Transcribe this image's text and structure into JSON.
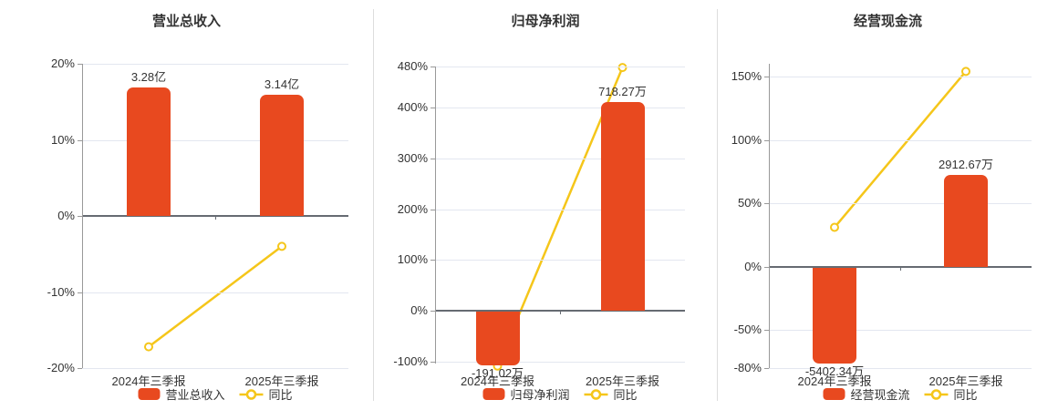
{
  "colors": {
    "bar": "#e8491f",
    "line": "#f5c61a",
    "grid": "#e3e7f0",
    "zero_axis": "#666b72",
    "axis_line": "#999999",
    "text": "#333333",
    "divider": "#dddddd",
    "marker_fill": "#ffffff",
    "background": "#ffffff"
  },
  "chart_data": [
    {
      "type": "bar+line",
      "title": "营业总收入",
      "categories": [
        "2024年三季报",
        "2025年三季报"
      ],
      "bar_series": {
        "name": "营业总收入",
        "value_labels": [
          "3.28亿",
          "3.14亿"
        ],
        "plot_values_pct": [
          16.9,
          15.9
        ]
      },
      "line_series": {
        "name": "同比",
        "values_pct": [
          -17.2,
          -4.0
        ]
      },
      "y_ticks_pct": [
        20,
        10,
        0,
        -10,
        -20
      ],
      "ylim": [
        -20,
        20
      ],
      "tick_suffix": "%",
      "grid": true,
      "legend": [
        "营业总收入",
        "同比"
      ],
      "legend_position": "bottom"
    },
    {
      "type": "bar+line",
      "title": "归母净利润",
      "categories": [
        "2024年三季报",
        "2025年三季报"
      ],
      "bar_series": {
        "name": "归母净利润",
        "value_labels": [
          "-191.02万",
          "718.27万"
        ],
        "plot_values_pct": [
          -104,
          410
        ]
      },
      "line_series": {
        "name": "同比",
        "values_pct": [
          -108,
          478
        ]
      },
      "y_ticks_pct": [
        480,
        400,
        300,
        200,
        100,
        0,
        -100
      ],
      "ylim": [
        -103,
        480
      ],
      "tick_suffix": "%",
      "grid": true,
      "legend": [
        "归母净利润",
        "同比"
      ],
      "legend_position": "bottom"
    },
    {
      "type": "bar+line",
      "title": "经营现金流",
      "categories": [
        "2024年三季报",
        "2025年三季报"
      ],
      "bar_series": {
        "name": "经营现金流",
        "value_labels": [
          "-5402.34万",
          "2912.67万"
        ],
        "plot_values_pct": [
          -76,
          72
        ]
      },
      "line_series": {
        "name": "同比",
        "values_pct": [
          31,
          154
        ]
      },
      "y_ticks_pct": [
        150,
        100,
        50,
        0,
        -50,
        -80
      ],
      "ylim": [
        -80,
        160
      ],
      "tick_suffix": "%",
      "grid": true,
      "legend": [
        "经营现金流",
        "同比"
      ],
      "legend_position": "bottom"
    }
  ]
}
